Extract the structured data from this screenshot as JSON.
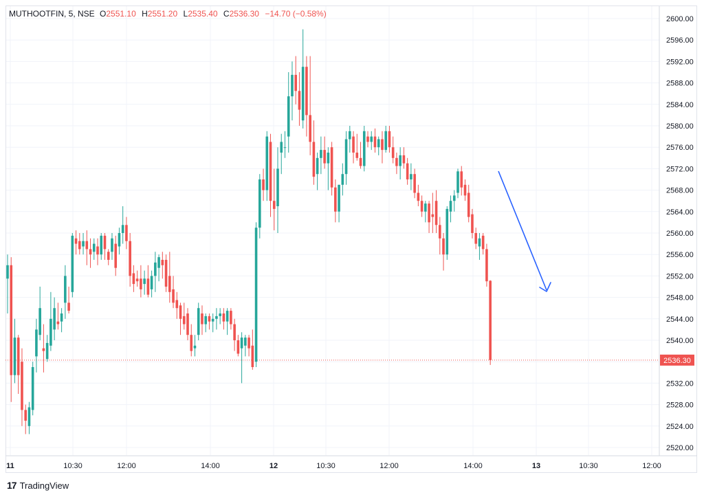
{
  "legend": {
    "symbol": "MUTHOOTFIN, 5, NSE",
    "open_label": "O",
    "open": "2551.10",
    "high_label": "H",
    "high": "2551.20",
    "low_label": "L",
    "low": "2535.40",
    "close_label": "C",
    "close": "2536.30",
    "change": "−14.70 (−0.58%)"
  },
  "brand": {
    "logo": "17",
    "name": "TradingView"
  },
  "colors": {
    "up": "#26a69a",
    "down": "#ef5350",
    "grid": "#f0f3fa",
    "axis_text": "#131722",
    "trend_arrow": "#2962ff"
  },
  "chart_data": {
    "type": "candlestick",
    "title": "MUTHOOTFIN, 5, NSE",
    "ylim": [
      2518,
      2602
    ],
    "y_ticks": [
      "2520.00",
      "2524.00",
      "2528.00",
      "2532.00",
      "2536.00",
      "2540.00",
      "2544.00",
      "2548.00",
      "2552.00",
      "2556.00",
      "2560.00",
      "2564.00",
      "2568.00",
      "2572.00",
      "2576.00",
      "2580.00",
      "2584.00",
      "2588.00",
      "2592.00",
      "2596.00",
      "2600.00"
    ],
    "x_ticks": [
      "11",
      "10:30",
      "12:00",
      "14:00",
      "12",
      "10:30",
      "12:00",
      "14:00",
      "13",
      "10:30",
      "12:00"
    ],
    "last_price_label": "2536.30",
    "last_price": 2536.3,
    "grid": true,
    "candles": [
      {
        "o": 2551.5,
        "h": 2556.0,
        "l": 2545.0,
        "c": 2554.0
      },
      {
        "o": 2554.0,
        "h": 2555.5,
        "l": 2528.5,
        "c": 2533.5
      },
      {
        "o": 2533.5,
        "h": 2544.0,
        "l": 2532.0,
        "c": 2540.5
      },
      {
        "o": 2540.5,
        "h": 2541.0,
        "l": 2530.0,
        "c": 2533.5
      },
      {
        "o": 2536.0,
        "h": 2538.5,
        "l": 2524.0,
        "c": 2527.0
      },
      {
        "o": 2527.0,
        "h": 2528.0,
        "l": 2522.5,
        "c": 2525.0
      },
      {
        "o": 2524.0,
        "h": 2528.5,
        "l": 2522.5,
        "c": 2527.5
      },
      {
        "o": 2527.0,
        "h": 2536.0,
        "l": 2526.0,
        "c": 2535.0
      },
      {
        "o": 2537.0,
        "h": 2544.0,
        "l": 2534.0,
        "c": 2542.0
      },
      {
        "o": 2541.0,
        "h": 2550.0,
        "l": 2540.0,
        "c": 2546.0
      },
      {
        "o": 2538.5,
        "h": 2543.0,
        "l": 2534.0,
        "c": 2538.0
      },
      {
        "o": 2536.5,
        "h": 2541.0,
        "l": 2536.0,
        "c": 2539.5
      },
      {
        "o": 2539.0,
        "h": 2549.0,
        "l": 2538.0,
        "c": 2544.0
      },
      {
        "o": 2542.0,
        "h": 2548.0,
        "l": 2540.0,
        "c": 2546.0
      },
      {
        "o": 2543.5,
        "h": 2547.0,
        "l": 2542.0,
        "c": 2543.0
      },
      {
        "o": 2543.5,
        "h": 2546.0,
        "l": 2541.5,
        "c": 2545.0
      },
      {
        "o": 2547.0,
        "h": 2554.0,
        "l": 2544.0,
        "c": 2552.0
      },
      {
        "o": 2547.0,
        "h": 2550.0,
        "l": 2545.0,
        "c": 2545.5
      },
      {
        "o": 2549.0,
        "h": 2560.0,
        "l": 2548.0,
        "c": 2559.5
      },
      {
        "o": 2559.0,
        "h": 2560.5,
        "l": 2556.0,
        "c": 2558.0
      },
      {
        "o": 2558.5,
        "h": 2560.0,
        "l": 2556.0,
        "c": 2557.0
      },
      {
        "o": 2557.5,
        "h": 2560.0,
        "l": 2556.0,
        "c": 2558.5
      },
      {
        "o": 2558.5,
        "h": 2560.5,
        "l": 2554.0,
        "c": 2557.0
      },
      {
        "o": 2557.0,
        "h": 2559.0,
        "l": 2553.5,
        "c": 2556.0
      },
      {
        "o": 2556.5,
        "h": 2559.0,
        "l": 2555.0,
        "c": 2558.0
      },
      {
        "o": 2557.5,
        "h": 2559.0,
        "l": 2554.0,
        "c": 2556.0
      },
      {
        "o": 2556.0,
        "h": 2560.0,
        "l": 2555.0,
        "c": 2559.5
      },
      {
        "o": 2559.5,
        "h": 2560.0,
        "l": 2555.0,
        "c": 2557.0
      },
      {
        "o": 2556.5,
        "h": 2557.0,
        "l": 2554.0,
        "c": 2555.0
      },
      {
        "o": 2556.5,
        "h": 2560.0,
        "l": 2555.0,
        "c": 2559.0
      },
      {
        "o": 2558.0,
        "h": 2559.5,
        "l": 2552.0,
        "c": 2553.5
      },
      {
        "o": 2557.5,
        "h": 2561.0,
        "l": 2556.0,
        "c": 2560.0
      },
      {
        "o": 2560.0,
        "h": 2565.0,
        "l": 2558.0,
        "c": 2561.5
      },
      {
        "o": 2561.5,
        "h": 2563.0,
        "l": 2557.0,
        "c": 2558.5
      },
      {
        "o": 2558.5,
        "h": 2560.0,
        "l": 2550.0,
        "c": 2552.0
      },
      {
        "o": 2552.5,
        "h": 2554.0,
        "l": 2549.0,
        "c": 2550.5
      },
      {
        "o": 2551.5,
        "h": 2553.0,
        "l": 2550.0,
        "c": 2551.0
      },
      {
        "o": 2551.5,
        "h": 2554.0,
        "l": 2548.0,
        "c": 2549.5
      },
      {
        "o": 2550.5,
        "h": 2553.0,
        "l": 2548.5,
        "c": 2551.5
      },
      {
        "o": 2551.5,
        "h": 2554.0,
        "l": 2548.0,
        "c": 2548.5
      },
      {
        "o": 2549.5,
        "h": 2553.0,
        "l": 2548.0,
        "c": 2552.0
      },
      {
        "o": 2552.0,
        "h": 2556.5,
        "l": 2549.0,
        "c": 2554.5
      },
      {
        "o": 2553.5,
        "h": 2556.0,
        "l": 2551.0,
        "c": 2555.5
      },
      {
        "o": 2555.0,
        "h": 2556.5,
        "l": 2551.5,
        "c": 2554.0
      },
      {
        "o": 2555.0,
        "h": 2556.0,
        "l": 2549.0,
        "c": 2550.0
      },
      {
        "o": 2552.0,
        "h": 2556.5,
        "l": 2547.0,
        "c": 2549.0
      },
      {
        "o": 2549.5,
        "h": 2552.0,
        "l": 2546.0,
        "c": 2547.0
      },
      {
        "o": 2547.5,
        "h": 2549.0,
        "l": 2544.0,
        "c": 2546.0
      },
      {
        "o": 2546.5,
        "h": 2547.0,
        "l": 2541.0,
        "c": 2544.0
      },
      {
        "o": 2544.5,
        "h": 2547.0,
        "l": 2542.0,
        "c": 2543.0
      },
      {
        "o": 2545.0,
        "h": 2546.0,
        "l": 2540.0,
        "c": 2541.0
      },
      {
        "o": 2541.0,
        "h": 2543.0,
        "l": 2537.0,
        "c": 2538.0
      },
      {
        "o": 2538.5,
        "h": 2541.0,
        "l": 2537.0,
        "c": 2539.0
      },
      {
        "o": 2541.0,
        "h": 2547.0,
        "l": 2540.0,
        "c": 2546.0
      },
      {
        "o": 2545.0,
        "h": 2546.5,
        "l": 2541.0,
        "c": 2543.0
      },
      {
        "o": 2543.0,
        "h": 2545.0,
        "l": 2541.5,
        "c": 2544.5
      },
      {
        "o": 2544.5,
        "h": 2545.0,
        "l": 2542.0,
        "c": 2543.5
      },
      {
        "o": 2543.5,
        "h": 2545.0,
        "l": 2541.5,
        "c": 2544.0
      },
      {
        "o": 2544.0,
        "h": 2546.0,
        "l": 2542.0,
        "c": 2544.5
      },
      {
        "o": 2544.5,
        "h": 2546.0,
        "l": 2543.0,
        "c": 2545.0
      },
      {
        "o": 2545.0,
        "h": 2546.0,
        "l": 2542.0,
        "c": 2543.5
      },
      {
        "o": 2543.5,
        "h": 2546.0,
        "l": 2541.0,
        "c": 2545.5
      },
      {
        "o": 2545.5,
        "h": 2546.0,
        "l": 2542.0,
        "c": 2543.0
      },
      {
        "o": 2543.0,
        "h": 2544.0,
        "l": 2538.0,
        "c": 2540.0
      },
      {
        "o": 2540.0,
        "h": 2541.0,
        "l": 2537.0,
        "c": 2537.5
      },
      {
        "o": 2538.5,
        "h": 2541.5,
        "l": 2532.0,
        "c": 2540.5
      },
      {
        "o": 2539.0,
        "h": 2541.0,
        "l": 2537.0,
        "c": 2540.5
      },
      {
        "o": 2540.5,
        "h": 2541.0,
        "l": 2537.0,
        "c": 2538.5
      },
      {
        "o": 2539.0,
        "h": 2542.0,
        "l": 2534.5,
        "c": 2535.0
      },
      {
        "o": 2536.0,
        "h": 2562.0,
        "l": 2535.0,
        "c": 2561.0
      },
      {
        "o": 2561.0,
        "h": 2571.0,
        "l": 2559.0,
        "c": 2570.0
      },
      {
        "o": 2570.0,
        "h": 2572.0,
        "l": 2566.0,
        "c": 2568.0
      },
      {
        "o": 2568.0,
        "h": 2579.0,
        "l": 2566.0,
        "c": 2578.0
      },
      {
        "o": 2577.0,
        "h": 2578.5,
        "l": 2563.0,
        "c": 2566.0
      },
      {
        "o": 2566.0,
        "h": 2572.0,
        "l": 2560.5,
        "c": 2564.5
      },
      {
        "o": 2565.0,
        "h": 2576.0,
        "l": 2560.0,
        "c": 2572.0
      },
      {
        "o": 2575.0,
        "h": 2578.5,
        "l": 2571.0,
        "c": 2577.0
      },
      {
        "o": 2576.0,
        "h": 2579.0,
        "l": 2574.0,
        "c": 2576.0
      },
      {
        "o": 2578.0,
        "h": 2590.0,
        "l": 2575.0,
        "c": 2585.5
      },
      {
        "o": 2585.5,
        "h": 2592.0,
        "l": 2581.0,
        "c": 2589.5
      },
      {
        "o": 2589.5,
        "h": 2593.0,
        "l": 2584.0,
        "c": 2586.5
      },
      {
        "o": 2586.5,
        "h": 2590.0,
        "l": 2580.0,
        "c": 2583.0
      },
      {
        "o": 2581.0,
        "h": 2598.0,
        "l": 2579.5,
        "c": 2591.0
      },
      {
        "o": 2591.0,
        "h": 2593.0,
        "l": 2578.0,
        "c": 2582.0
      },
      {
        "o": 2582.0,
        "h": 2593.0,
        "l": 2574.5,
        "c": 2577.0
      },
      {
        "o": 2577.0,
        "h": 2581.0,
        "l": 2569.0,
        "c": 2570.5
      },
      {
        "o": 2571.0,
        "h": 2575.0,
        "l": 2568.0,
        "c": 2574.0
      },
      {
        "o": 2574.0,
        "h": 2578.0,
        "l": 2571.0,
        "c": 2575.5
      },
      {
        "o": 2575.5,
        "h": 2578.0,
        "l": 2572.0,
        "c": 2573.0
      },
      {
        "o": 2573.0,
        "h": 2576.0,
        "l": 2568.0,
        "c": 2575.0
      },
      {
        "o": 2576.0,
        "h": 2577.0,
        "l": 2567.0,
        "c": 2568.5
      },
      {
        "o": 2568.5,
        "h": 2570.0,
        "l": 2562.0,
        "c": 2564.0
      },
      {
        "o": 2564.0,
        "h": 2569.0,
        "l": 2562.0,
        "c": 2569.0
      },
      {
        "o": 2569.0,
        "h": 2573.0,
        "l": 2567.0,
        "c": 2571.0
      },
      {
        "o": 2571.0,
        "h": 2579.0,
        "l": 2569.0,
        "c": 2577.5
      },
      {
        "o": 2577.5,
        "h": 2580.0,
        "l": 2575.0,
        "c": 2579.0
      },
      {
        "o": 2578.0,
        "h": 2579.0,
        "l": 2573.0,
        "c": 2575.0
      },
      {
        "o": 2575.0,
        "h": 2578.5,
        "l": 2573.5,
        "c": 2574.0
      },
      {
        "o": 2574.0,
        "h": 2577.0,
        "l": 2572.0,
        "c": 2572.5
      },
      {
        "o": 2572.5,
        "h": 2580.0,
        "l": 2571.5,
        "c": 2579.0
      },
      {
        "o": 2578.0,
        "h": 2579.0,
        "l": 2576.0,
        "c": 2577.0
      },
      {
        "o": 2577.0,
        "h": 2579.0,
        "l": 2575.5,
        "c": 2578.0
      },
      {
        "o": 2578.0,
        "h": 2579.5,
        "l": 2575.0,
        "c": 2576.0
      },
      {
        "o": 2576.0,
        "h": 2578.0,
        "l": 2574.5,
        "c": 2577.5
      },
      {
        "o": 2577.5,
        "h": 2579.0,
        "l": 2573.0,
        "c": 2575.5
      },
      {
        "o": 2575.5,
        "h": 2580.0,
        "l": 2575.0,
        "c": 2579.0
      },
      {
        "o": 2579.0,
        "h": 2580.0,
        "l": 2575.0,
        "c": 2576.0
      },
      {
        "o": 2576.0,
        "h": 2578.0,
        "l": 2573.0,
        "c": 2574.0
      },
      {
        "o": 2574.0,
        "h": 2575.0,
        "l": 2571.0,
        "c": 2572.5
      },
      {
        "o": 2572.5,
        "h": 2576.0,
        "l": 2570.0,
        "c": 2574.5
      },
      {
        "o": 2574.5,
        "h": 2576.0,
        "l": 2572.0,
        "c": 2573.0
      },
      {
        "o": 2573.0,
        "h": 2574.0,
        "l": 2569.0,
        "c": 2570.0
      },
      {
        "o": 2570.0,
        "h": 2573.0,
        "l": 2568.0,
        "c": 2571.0
      },
      {
        "o": 2571.0,
        "h": 2572.0,
        "l": 2566.5,
        "c": 2567.5
      },
      {
        "o": 2567.5,
        "h": 2569.0,
        "l": 2565.0,
        "c": 2566.0
      },
      {
        "o": 2566.0,
        "h": 2567.0,
        "l": 2563.0,
        "c": 2564.0
      },
      {
        "o": 2564.0,
        "h": 2566.0,
        "l": 2562.0,
        "c": 2565.5
      },
      {
        "o": 2565.5,
        "h": 2566.0,
        "l": 2560.0,
        "c": 2562.0
      },
      {
        "o": 2563.5,
        "h": 2567.5,
        "l": 2560.0,
        "c": 2563.0
      },
      {
        "o": 2566.0,
        "h": 2568.0,
        "l": 2560.0,
        "c": 2561.5
      },
      {
        "o": 2561.5,
        "h": 2563.0,
        "l": 2556.0,
        "c": 2559.0
      },
      {
        "o": 2559.0,
        "h": 2560.0,
        "l": 2553.0,
        "c": 2556.0
      },
      {
        "o": 2556.0,
        "h": 2565.0,
        "l": 2555.0,
        "c": 2564.5
      },
      {
        "o": 2564.0,
        "h": 2567.0,
        "l": 2562.0,
        "c": 2566.0
      },
      {
        "o": 2566.0,
        "h": 2568.0,
        "l": 2564.0,
        "c": 2567.0
      },
      {
        "o": 2567.5,
        "h": 2572.0,
        "l": 2566.5,
        "c": 2571.5
      },
      {
        "o": 2571.5,
        "h": 2572.5,
        "l": 2567.0,
        "c": 2568.5
      },
      {
        "o": 2569.0,
        "h": 2570.0,
        "l": 2566.0,
        "c": 2567.0
      },
      {
        "o": 2567.5,
        "h": 2569.0,
        "l": 2562.0,
        "c": 2563.0
      },
      {
        "o": 2563.5,
        "h": 2564.5,
        "l": 2559.0,
        "c": 2560.0
      },
      {
        "o": 2560.0,
        "h": 2561.0,
        "l": 2557.0,
        "c": 2558.0
      },
      {
        "o": 2557.5,
        "h": 2560.0,
        "l": 2555.0,
        "c": 2559.0
      },
      {
        "o": 2559.5,
        "h": 2560.0,
        "l": 2556.0,
        "c": 2557.0
      },
      {
        "o": 2557.0,
        "h": 2558.0,
        "l": 2550.0,
        "c": 2551.0
      },
      {
        "o": 2551.1,
        "h": 2551.2,
        "l": 2535.4,
        "c": 2536.3
      }
    ]
  }
}
